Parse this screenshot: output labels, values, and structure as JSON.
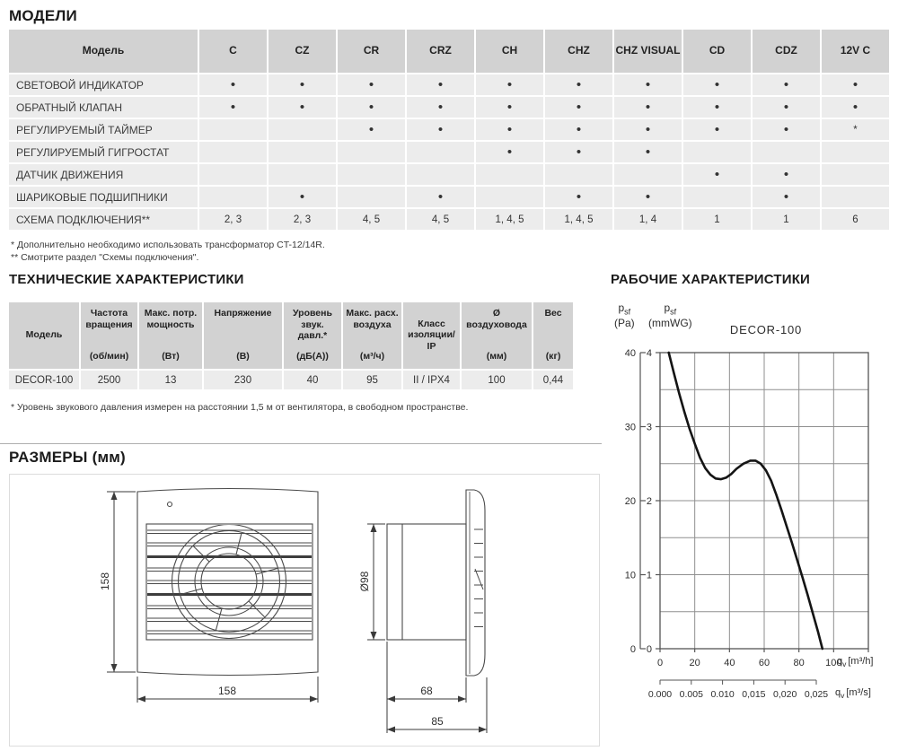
{
  "sections": {
    "models": {
      "title": "МОДЕЛИ",
      "table": {
        "corner_label": "Модель",
        "columns": [
          "C",
          "CZ",
          "CR",
          "CRZ",
          "CH",
          "CHZ",
          "CHZ VISUAL",
          "CD",
          "CDZ",
          "12V C"
        ],
        "rows": [
          {
            "label": "СВЕТОВОЙ ИНДИКАТОР",
            "cells": [
              "•",
              "•",
              "•",
              "•",
              "•",
              "•",
              "•",
              "•",
              "•",
              "•"
            ]
          },
          {
            "label": "ОБРАТНЫЙ КЛАПАН",
            "cells": [
              "•",
              "•",
              "•",
              "•",
              "•",
              "•",
              "•",
              "•",
              "•",
              "•"
            ]
          },
          {
            "label": "РЕГУЛИРУЕМЫЙ ТАЙМЕР",
            "cells": [
              "",
              "",
              "•",
              "•",
              "•",
              "•",
              "•",
              "•",
              "•",
              "*"
            ]
          },
          {
            "label": "РЕГУЛИРУЕМЫЙ ГИГРОСТАТ",
            "cells": [
              "",
              "",
              "",
              "",
              "•",
              "•",
              "•",
              "",
              "",
              ""
            ]
          },
          {
            "label": "ДАТЧИК ДВИЖЕНИЯ",
            "cells": [
              "",
              "",
              "",
              "",
              "",
              "",
              "",
              "•",
              "•",
              ""
            ]
          },
          {
            "label": "ШАРИКОВЫЕ ПОДШИПНИКИ",
            "cells": [
              "",
              "•",
              "",
              "•",
              "",
              "•",
              "•",
              "",
              "•",
              ""
            ]
          },
          {
            "label": "СХЕМА ПОДКЛЮЧЕНИЯ**",
            "cells": [
              "2, 3",
              "2, 3",
              "4, 5",
              "4, 5",
              "1, 4, 5",
              "1, 4, 5",
              "1, 4",
              "1",
              "1",
              "6"
            ]
          }
        ]
      },
      "footnote1": "* Дополнительно необходимо использовать трансформатор CT-12/14R.",
      "footnote2": "** Смотрите раздел \"Схемы подключения\"."
    },
    "tech": {
      "title": "ТЕХНИЧЕСКИЕ ХАРАКТЕРИСТИКИ",
      "table": {
        "columns": [
          {
            "label": "Модель",
            "unit": ""
          },
          {
            "label": "Частота вращения",
            "unit": "(об/мин)"
          },
          {
            "label": "Макс. потр. мощность",
            "unit": "(Вт)"
          },
          {
            "label": "Напряжение",
            "unit": "(В)"
          },
          {
            "label": "Уровень звук. давл.*",
            "unit": "(дБ(А))"
          },
          {
            "label": "Макс. расх. воздуха",
            "unit": "(м³/ч)"
          },
          {
            "label": "Класс изоляции/ IP",
            "unit": ""
          },
          {
            "label": "Ø воздуховода",
            "unit": "(мм)"
          },
          {
            "label": "Вес",
            "unit": "(кг)"
          }
        ],
        "row": [
          "DECOR-100",
          "2500",
          "13",
          "230",
          "40",
          "95",
          "II / IPX4",
          "100",
          "0,44"
        ]
      },
      "footnote": "* Уровень звукового давления измерен на расстоянии 1,5 м от вентилятора, в свободном пространстве."
    },
    "performance": {
      "title": "РАБОЧИЕ ХАРАКТЕРИСТИКИ"
    },
    "dimensions": {
      "title": "РАЗМЕРЫ (мм)",
      "labels": {
        "front_height": "158",
        "front_width": "158",
        "duct_diameter": "Ø98",
        "duct_length": "68",
        "total_depth": "85"
      }
    }
  },
  "chart_data": {
    "type": "line",
    "title": "DECOR-100",
    "y_axis_left1": {
      "sym": "p",
      "sub": "sf",
      "unit": "(Pa)",
      "ticks": [
        40,
        30,
        20,
        10,
        0
      ]
    },
    "y_axis_left2": {
      "sym": "p",
      "sub": "sf",
      "unit": "(mmWG)",
      "ticks": [
        4,
        3,
        2,
        1,
        0
      ]
    },
    "x_axis": {
      "ticks": [
        0,
        20,
        40,
        60,
        80,
        100
      ],
      "max": 120,
      "sym": "q",
      "sub": "v",
      "unit": "[m³/h]"
    },
    "x_axis_secondary": {
      "ticks": [
        "0.000",
        "0.005",
        "0.010",
        "0,015",
        "0,020",
        "0,025"
      ],
      "step_m3h": 18,
      "sym": "q",
      "sub": "v",
      "unit": "[m³/s]"
    },
    "ylim": [
      0,
      4
    ],
    "grid_step_x": 20,
    "grid_step_y": 0.5,
    "grid": true,
    "series": [
      {
        "name": "DECOR-100",
        "x_unit": "m³/h",
        "y_unit": "mmWG",
        "points": [
          [
            5,
            4.0
          ],
          [
            8,
            3.72
          ],
          [
            11,
            3.45
          ],
          [
            14,
            3.2
          ],
          [
            17,
            2.97
          ],
          [
            20,
            2.77
          ],
          [
            23,
            2.58
          ],
          [
            26,
            2.44
          ],
          [
            29,
            2.35
          ],
          [
            32,
            2.3
          ],
          [
            35,
            2.29
          ],
          [
            38,
            2.31
          ],
          [
            41,
            2.36
          ],
          [
            44,
            2.43
          ],
          [
            48,
            2.5
          ],
          [
            52,
            2.54
          ],
          [
            55,
            2.54
          ],
          [
            58,
            2.5
          ],
          [
            61,
            2.41
          ],
          [
            64,
            2.27
          ],
          [
            67,
            2.08
          ],
          [
            70,
            1.87
          ],
          [
            73,
            1.65
          ],
          [
            76,
            1.43
          ],
          [
            79,
            1.2
          ],
          [
            82,
            0.97
          ],
          [
            85,
            0.73
          ],
          [
            88,
            0.48
          ],
          [
            91,
            0.23
          ],
          [
            93.5,
            0
          ]
        ]
      }
    ]
  },
  "colors": {
    "table_header_bg": "#d2d2d2",
    "table_cell_bg": "#ececec",
    "curve": "#141414",
    "grid_line": "#8f8f8f",
    "axis_line": "#555555",
    "drawing_stroke": "#4a4a4a",
    "text": "#2e2e2e"
  }
}
